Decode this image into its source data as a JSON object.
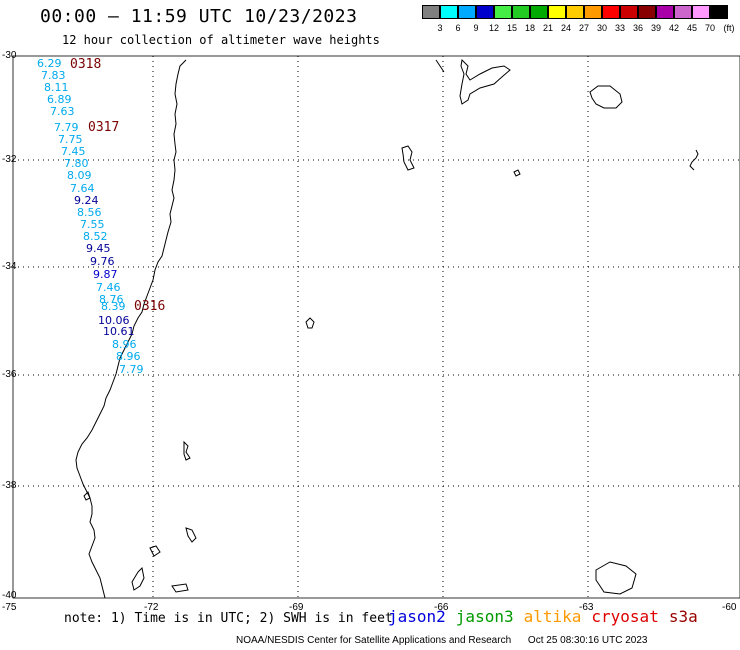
{
  "header": {
    "title": "00:00 – 11:59 UTC 10/23/2023",
    "subtitle": "12 hour collection of altimeter wave heights"
  },
  "colorbar": {
    "colors": [
      "#808080",
      "#00ffff",
      "#00aaff",
      "#0000cc",
      "#44ee44",
      "#22cc22",
      "#00aa00",
      "#ffff00",
      "#ffcc00",
      "#ff9900",
      "#ff0000",
      "#cc0000",
      "#880000",
      "#aa00aa",
      "#cc66cc",
      "#ff99ff",
      "#000000"
    ],
    "labels": [
      "3",
      "6",
      "9",
      "12",
      "15",
      "18",
      "21",
      "24",
      "27",
      "30",
      "33",
      "36",
      "39",
      "42",
      "45",
      "70"
    ],
    "unit": "(ft)"
  },
  "axes": {
    "lat_labels": [
      "-30",
      "-32",
      "-34",
      "-36",
      "-38",
      "-40"
    ],
    "lon_labels": [
      "-75",
      "-72",
      "-69",
      "-66",
      "-63",
      "-60"
    ]
  },
  "track": {
    "values": [
      {
        "text": "6.29",
        "color": "#00aaee"
      },
      {
        "text": "7.83",
        "color": "#00aaee"
      },
      {
        "text": "8.11",
        "color": "#00aaee"
      },
      {
        "text": "6.89",
        "color": "#00aaee"
      },
      {
        "text": "7.63",
        "color": "#00aaee"
      },
      {
        "text": "7.79",
        "color": "#00aaee"
      },
      {
        "text": "7.75",
        "color": "#00aaee"
      },
      {
        "text": "7.45",
        "color": "#00aaee"
      },
      {
        "text": "7.80",
        "color": "#00aaee"
      },
      {
        "text": "8.09",
        "color": "#00aaee"
      },
      {
        "text": "7.64",
        "color": "#00aaee"
      },
      {
        "text": "9.24",
        "color": "#000099"
      },
      {
        "text": "8.56",
        "color": "#00aaee"
      },
      {
        "text": "7.55",
        "color": "#00aaee"
      },
      {
        "text": "8.52",
        "color": "#00aaee"
      },
      {
        "text": "9.45",
        "color": "#000099"
      },
      {
        "text": "9.76",
        "color": "#000099"
      },
      {
        "text": "9.87",
        "color": "#0000cc"
      },
      {
        "text": "7.46",
        "color": "#00aaee"
      },
      {
        "text": "8.76",
        "color": "#00aaee"
      },
      {
        "text": "8.39",
        "color": "#00aaee"
      },
      {
        "text": "10.06",
        "color": "#000099"
      },
      {
        "text": "10.61",
        "color": "#000099"
      },
      {
        "text": "8.96",
        "color": "#00aaee"
      },
      {
        "text": "8.96",
        "color": "#00aaee"
      },
      {
        "text": "7.79",
        "color": "#00aaee"
      }
    ],
    "times": [
      "0318",
      "0317",
      "0316"
    ]
  },
  "note": "note: 1) Time is in UTC; 2) SWH is in feet",
  "legend": [
    {
      "name": "jason2",
      "color": "#0000dd"
    },
    {
      "name": "jason3",
      "color": "#009900"
    },
    {
      "name": "altika",
      "color": "#ff9900"
    },
    {
      "name": "cryosat",
      "color": "#dd0000"
    },
    {
      "name": "s3a",
      "color": "#990000"
    }
  ],
  "footer": {
    "credit": "NOAA/NESDIS Center for Satellite Applications and Research",
    "timestamp": "Oct 25 08:30:16 UTC 2023"
  }
}
